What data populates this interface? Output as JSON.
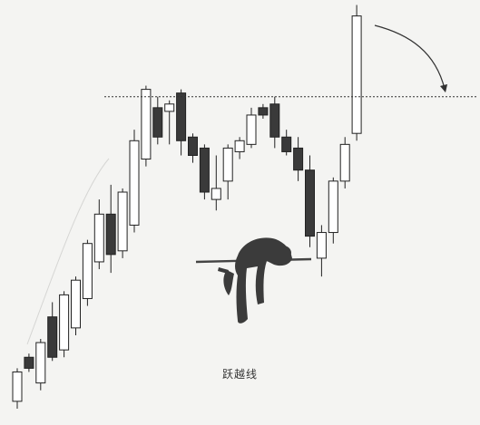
{
  "caption": "跃越线",
  "chart_data": {
    "type": "candlestick",
    "title": "",
    "xlabel": "",
    "ylabel": "",
    "ylim": [
      0,
      100
    ],
    "grid": false,
    "resistance_level": 86,
    "up_color": "#ffffff",
    "down_color": "#3a3a3a",
    "candles": [
      {
        "open": 3,
        "high": 12,
        "low": 1,
        "close": 11
      },
      {
        "open": 15,
        "high": 16,
        "low": 11,
        "close": 12
      },
      {
        "open": 8,
        "high": 20,
        "low": 6,
        "close": 19
      },
      {
        "open": 26,
        "high": 30,
        "low": 14,
        "close": 15
      },
      {
        "open": 17,
        "high": 33,
        "low": 15,
        "close": 32
      },
      {
        "open": 23,
        "high": 37,
        "low": 21,
        "close": 36
      },
      {
        "open": 31,
        "high": 47,
        "low": 29,
        "close": 46
      },
      {
        "open": 41,
        "high": 58,
        "low": 39,
        "close": 54
      },
      {
        "open": 54,
        "high": 62,
        "low": 38,
        "close": 43
      },
      {
        "open": 44,
        "high": 61,
        "low": 42,
        "close": 60
      },
      {
        "open": 51,
        "high": 77,
        "low": 49,
        "close": 74
      },
      {
        "open": 69,
        "high": 89,
        "low": 67,
        "close": 88
      },
      {
        "open": 83,
        "high": 86,
        "low": 73,
        "close": 75
      },
      {
        "open": 82,
        "high": 85,
        "low": 73,
        "close": 84
      },
      {
        "open": 87,
        "high": 88,
        "low": 70,
        "close": 74
      },
      {
        "open": 75,
        "high": 76,
        "low": 68,
        "close": 70
      },
      {
        "open": 72,
        "high": 73,
        "low": 58,
        "close": 60
      },
      {
        "open": 58,
        "high": 70,
        "low": 55,
        "close": 61
      },
      {
        "open": 63,
        "high": 73,
        "low": 58,
        "close": 72
      },
      {
        "open": 71,
        "high": 75,
        "low": 69,
        "close": 74
      },
      {
        "open": 73,
        "high": 83,
        "low": 72,
        "close": 81
      },
      {
        "open": 83,
        "high": 84,
        "low": 80,
        "close": 81
      },
      {
        "open": 84,
        "high": 86,
        "low": 72,
        "close": 75
      },
      {
        "open": 75,
        "high": 77,
        "low": 70,
        "close": 71
      },
      {
        "open": 72,
        "high": 75,
        "low": 63,
        "close": 66
      },
      {
        "open": 66,
        "high": 70,
        "low": 45,
        "close": 48
      },
      {
        "open": 42,
        "high": 51,
        "low": 37,
        "close": 49
      },
      {
        "open": 49,
        "high": 64,
        "low": 46,
        "close": 63
      },
      {
        "open": 63,
        "high": 75,
        "low": 61,
        "close": 73
      },
      {
        "open": 76,
        "high": 111,
        "low": 74,
        "close": 108
      }
    ]
  }
}
